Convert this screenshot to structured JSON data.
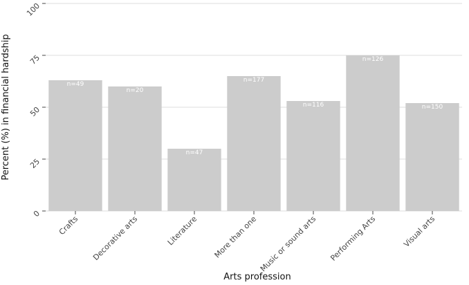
{
  "chart_data": {
    "type": "bar",
    "x_label": "Arts profession",
    "y_label": "Percent (%) in financial hardship",
    "categories": [
      "Crafts",
      "Decorative arts",
      "Literature",
      "More than one",
      "Music or sound arts",
      "Performing Arts",
      "Visual arts"
    ],
    "values": [
      63,
      60,
      30,
      65,
      53,
      75,
      52
    ],
    "annotations": [
      "n=49",
      "n=20",
      "n=47",
      "n=177",
      "n=116",
      "n=126",
      "n=150"
    ],
    "color": "#cccccc",
    "ylim": [
      0,
      100
    ],
    "yticks": [
      0,
      25,
      50,
      75,
      100
    ],
    "grid": true
  }
}
